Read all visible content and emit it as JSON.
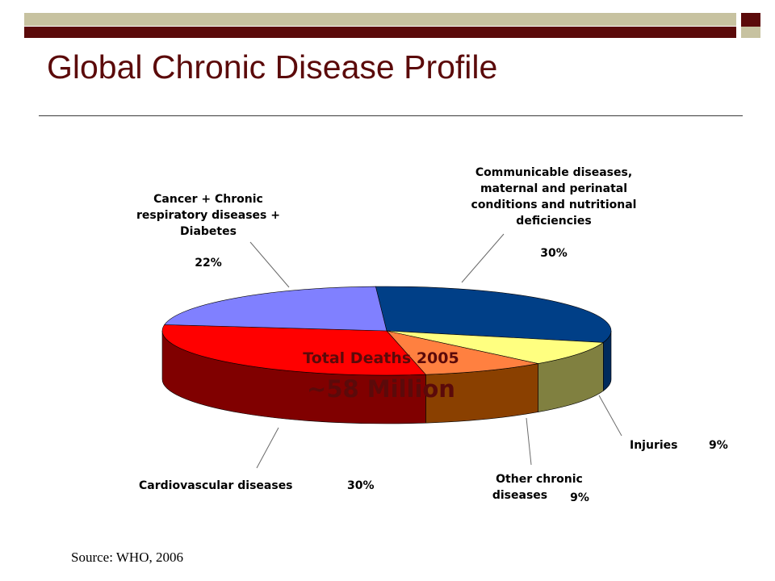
{
  "slide": {
    "title": "Global Chronic Disease Profile",
    "source": "Source:  WHO, 2006"
  },
  "colors": {
    "frame_dark": "#5b0a0a",
    "frame_light": "#c7c2a0"
  },
  "chart_data": {
    "type": "pie",
    "style": "3d",
    "title": "",
    "center_text": [
      "Total Deaths 2005",
      "~58 Million"
    ],
    "slices": [
      {
        "label_lines": [
          "Communicable diseases,",
          "maternal and perinatal",
          "conditions and nutritional",
          "deficiencies"
        ],
        "value": 30,
        "value_label": "30%",
        "color": "#003f87",
        "side_color": "#002a5c"
      },
      {
        "label_lines": [
          "Injuries"
        ],
        "value": 9,
        "value_label": "9%",
        "color": "#ffff80",
        "side_color": "#808040"
      },
      {
        "label_lines": [
          "Other chronic",
          "diseases"
        ],
        "value": 9,
        "value_label": "9%",
        "color": "#ff8040",
        "side_color": "#8a4000"
      },
      {
        "label_lines": [
          "Cardiovascular diseases"
        ],
        "value": 30,
        "value_label": "30%",
        "color": "#ff0000",
        "side_color": "#800000"
      },
      {
        "label_lines": [
          "Cancer + Chronic",
          "respiratory diseases +",
          "Diabetes"
        ],
        "value": 22,
        "value_label": "22%",
        "color": "#8080ff",
        "side_color": "#4a4aa0"
      }
    ]
  }
}
